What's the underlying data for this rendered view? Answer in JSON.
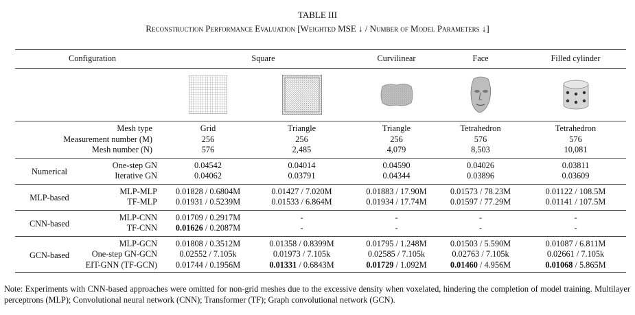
{
  "title": "TABLE III",
  "caption": "Reconstruction Performance Evaluation [Weighted MSE ↓ / Number of Model Parameters ↓]",
  "table": {
    "header": {
      "configuration": "Configuration",
      "square": "Square",
      "curvilinear": "Curvilinear",
      "face": "Face",
      "cylinder": "Filled cylinder"
    },
    "mesh_rows": [
      {
        "label": "Mesh type",
        "cells": [
          "Grid",
          "Triangle",
          "Triangle",
          "Tetrahedron",
          "Tetrahedron"
        ]
      },
      {
        "label": "Measurement number (M)",
        "cells": [
          "256",
          "256",
          "256",
          "576",
          "576"
        ]
      },
      {
        "label": "Mesh number (N)",
        "cells": [
          "576",
          "2,485",
          "4,079",
          "8,503",
          "10,081"
        ]
      }
    ],
    "groups": [
      {
        "name": "Numerical",
        "rows": [
          {
            "method": "One-step GN",
            "cells": [
              "0.04542",
              "0.04014",
              "0.04590",
              "0.04026",
              "0.03811"
            ],
            "best": []
          },
          {
            "method": "Iterative GN",
            "cells": [
              "0.04062",
              "0.03791",
              "0.04344",
              "0.03896",
              "0.03609"
            ],
            "best": []
          }
        ]
      },
      {
        "name": "MLP-based",
        "rows": [
          {
            "method": "MLP-MLP",
            "cells": [
              "0.01828 / 0.6804M",
              "0.01427 / 7.020M",
              "0.01883 / 17.90M",
              "0.01573 / 78.23M",
              "0.01122 / 108.5M"
            ],
            "best": []
          },
          {
            "method": "TF-MLP",
            "cells": [
              "0.01931 / 0.5239M",
              "0.01533 / 6.864M",
              "0.01934 / 17.74M",
              "0.01597 / 77.29M",
              "0.01141 / 107.5M"
            ],
            "best": []
          }
        ]
      },
      {
        "name": "CNN-based",
        "rows": [
          {
            "method": "MLP-CNN",
            "cells": [
              "0.01709 / 0.2917M",
              "-",
              "-",
              "-",
              "-"
            ],
            "best": []
          },
          {
            "method": "TF-CNN",
            "cells": [
              "0.01626 / 0.2087M",
              "-",
              "-",
              "-",
              "-"
            ],
            "best": [
              0
            ]
          }
        ]
      },
      {
        "name": "GCN-based",
        "rows": [
          {
            "method": "MLP-GCN",
            "cells": [
              "0.01808 / 0.3512M",
              "0.01358 / 0.8399M",
              "0.01795 / 1.248M",
              "0.01503 / 5.590M",
              "0.01087 / 6.811M"
            ],
            "best": []
          },
          {
            "method": "One-step GN-GCN",
            "cells": [
              "0.02552 / 7.105k",
              "0.01973 / 7.105k",
              "0.02585 / 7.105k",
              "0.02763 / 7.105k",
              "0.02661 / 7.105k"
            ],
            "best": []
          },
          {
            "method": "EIT-GNN (TF-GCN)",
            "cells": [
              "0.01744 / 0.1956M",
              "0.01331 / 0.6843M",
              "0.01729 / 1.092M",
              "0.01460 / 4.956M",
              "0.01068 / 5.865M"
            ],
            "best": [
              1,
              2,
              3,
              4
            ]
          }
        ]
      }
    ]
  },
  "note": "Note: Experiments with CNN-based approaches were omitted for non-grid meshes due to the excessive density when voxelated, hindering the completion of model training. Multilayer perceptrons (MLP); Convolutional neural network (CNN); Transformer (TF); Graph convolutional network (GCN)."
}
